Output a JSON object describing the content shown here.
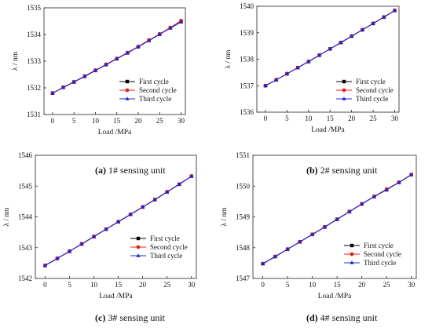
{
  "chart_data": [
    {
      "type": "line",
      "panel_label": "(a)",
      "caption": "1# sensing unit",
      "xlabel": "Load /MPa",
      "ylabel": "λ / nm",
      "xlim": [
        -2,
        31
      ],
      "ylim": [
        1531,
        1535
      ],
      "xticks": [
        0,
        5,
        10,
        15,
        20,
        25,
        30
      ],
      "yticks": [
        1531,
        1532,
        1533,
        1534,
        1535
      ],
      "legend_position": "right",
      "x": [
        0,
        2.5,
        5,
        7.5,
        10,
        12.5,
        15,
        17.5,
        20,
        22.5,
        25,
        27.5,
        30
      ],
      "series": [
        {
          "name": "First cycle",
          "color": "#000000",
          "marker": "square",
          "values": [
            1531.8,
            1532.02,
            1532.22,
            1532.43,
            1532.65,
            1532.87,
            1533.09,
            1533.31,
            1533.54,
            1533.78,
            1534.01,
            1534.25,
            1534.48
          ]
        },
        {
          "name": "Second cycle",
          "color": "#e8201b",
          "marker": "circle",
          "values": [
            1531.8,
            1532.02,
            1532.22,
            1532.44,
            1532.66,
            1532.88,
            1533.1,
            1533.32,
            1533.55,
            1533.79,
            1534.02,
            1534.26,
            1534.52
          ]
        },
        {
          "name": "Third cycle",
          "color": "#1f24d0",
          "marker": "triangle",
          "values": [
            1531.8,
            1532.01,
            1532.22,
            1532.43,
            1532.65,
            1532.87,
            1533.09,
            1533.31,
            1533.54,
            1533.77,
            1534.01,
            1534.24,
            1534.47
          ]
        }
      ]
    },
    {
      "type": "line",
      "panel_label": "(b)",
      "caption": "2# sensing unit",
      "xlabel": "Load /MPa",
      "ylabel": "λ / nm",
      "xlim": [
        -2,
        31
      ],
      "ylim": [
        1536,
        1540
      ],
      "xticks": [
        0,
        5,
        10,
        15,
        20,
        25,
        30
      ],
      "yticks": [
        1536,
        1537,
        1538,
        1539,
        1540
      ],
      "legend_position": "right",
      "x": [
        0,
        2.5,
        5,
        7.5,
        10,
        12.5,
        15,
        17.5,
        20,
        22.5,
        25,
        27.5,
        30
      ],
      "series": [
        {
          "name": "First cycle",
          "color": "#000000",
          "marker": "square",
          "values": [
            1537.0,
            1537.22,
            1537.45,
            1537.68,
            1537.91,
            1538.15,
            1538.39,
            1538.63,
            1538.87,
            1539.11,
            1539.35,
            1539.59,
            1539.84
          ]
        },
        {
          "name": "Second cycle",
          "color": "#e8201b",
          "marker": "circle",
          "values": [
            1537.0,
            1537.22,
            1537.45,
            1537.68,
            1537.91,
            1538.15,
            1538.39,
            1538.63,
            1538.87,
            1539.11,
            1539.35,
            1539.59,
            1539.84
          ]
        },
        {
          "name": "Third cycle",
          "color": "#1f24d0",
          "marker": "triangle",
          "values": [
            1537.0,
            1537.22,
            1537.45,
            1537.68,
            1537.91,
            1538.15,
            1538.39,
            1538.63,
            1538.87,
            1539.11,
            1539.35,
            1539.59,
            1539.84
          ]
        }
      ]
    },
    {
      "type": "line",
      "panel_label": "(c)",
      "caption": "3# sensing unit",
      "xlabel": "Load /MPa",
      "ylabel": "λ / nm",
      "xlim": [
        -2,
        31
      ],
      "ylim": [
        1542,
        1546
      ],
      "xticks": [
        0,
        5,
        10,
        15,
        20,
        25,
        30
      ],
      "yticks": [
        1542,
        1543,
        1544,
        1545,
        1546
      ],
      "legend_position": "right",
      "x": [
        0,
        2.5,
        5,
        7.5,
        10,
        12.5,
        15,
        17.5,
        20,
        22.5,
        25,
        27.5,
        30
      ],
      "series": [
        {
          "name": "First cycle",
          "color": "#000000",
          "marker": "square",
          "values": [
            1542.42,
            1542.65,
            1542.88,
            1543.12,
            1543.36,
            1543.6,
            1543.84,
            1544.08,
            1544.32,
            1544.56,
            1544.81,
            1545.06,
            1545.32
          ]
        },
        {
          "name": "Second cycle",
          "color": "#e8201b",
          "marker": "circle",
          "values": [
            1542.42,
            1542.65,
            1542.88,
            1543.12,
            1543.36,
            1543.6,
            1543.84,
            1544.08,
            1544.32,
            1544.56,
            1544.81,
            1545.06,
            1545.32
          ]
        },
        {
          "name": "Third cycle",
          "color": "#1f24d0",
          "marker": "triangle",
          "values": [
            1542.42,
            1542.65,
            1542.88,
            1543.12,
            1543.36,
            1543.6,
            1543.84,
            1544.08,
            1544.32,
            1544.56,
            1544.81,
            1545.06,
            1545.32
          ]
        }
      ]
    },
    {
      "type": "line",
      "panel_label": "(d)",
      "caption": "4# sensing unit",
      "xlabel": "Load /MPa",
      "ylabel": "λ / nm",
      "xlim": [
        -2,
        31
      ],
      "ylim": [
        1547,
        1551
      ],
      "xticks": [
        0,
        5,
        10,
        15,
        20,
        25,
        30
      ],
      "yticks": [
        1547,
        1548,
        1549,
        1550,
        1551
      ],
      "legend_position": "right",
      "x": [
        0,
        2.5,
        5,
        7.5,
        10,
        12.5,
        15,
        17.5,
        20,
        22.5,
        25,
        27.5,
        30
      ],
      "series": [
        {
          "name": "First cycle",
          "color": "#000000",
          "marker": "square",
          "values": [
            1547.48,
            1547.71,
            1547.95,
            1548.19,
            1548.43,
            1548.67,
            1548.92,
            1549.17,
            1549.42,
            1549.66,
            1549.88,
            1550.12,
            1550.37
          ]
        },
        {
          "name": "Second cycle",
          "color": "#e8201b",
          "marker": "circle",
          "values": [
            1547.48,
            1547.71,
            1547.95,
            1548.19,
            1548.43,
            1548.67,
            1548.92,
            1549.17,
            1549.42,
            1549.66,
            1549.9,
            1550.12,
            1550.37
          ]
        },
        {
          "name": "Third cycle",
          "color": "#1f24d0",
          "marker": "triangle",
          "values": [
            1547.48,
            1547.71,
            1547.95,
            1548.19,
            1548.43,
            1548.67,
            1548.92,
            1549.17,
            1549.42,
            1549.66,
            1549.88,
            1550.12,
            1550.37
          ]
        }
      ]
    }
  ]
}
